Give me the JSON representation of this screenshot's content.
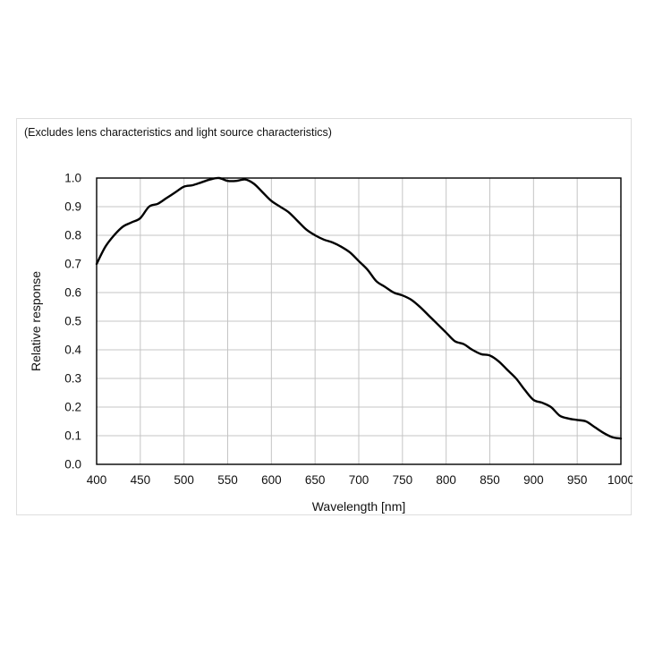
{
  "chart_data": {
    "type": "line",
    "note": "(Excludes lens characteristics and light source characteristics)",
    "xlabel": "Wavelength [nm]",
    "ylabel": "Relative response",
    "xlim": [
      400,
      1000
    ],
    "ylim": [
      0.0,
      1.0
    ],
    "x_ticks": [
      400,
      450,
      500,
      550,
      600,
      650,
      700,
      750,
      800,
      850,
      900,
      950,
      1000
    ],
    "y_ticks": [
      "0.0",
      "0.1",
      "0.2",
      "0.3",
      "0.4",
      "0.5",
      "0.6",
      "0.7",
      "0.8",
      "0.9",
      "1.0"
    ],
    "grid": true,
    "series": [
      {
        "color": "#000000",
        "x": [
          400,
          410,
          420,
          430,
          440,
          450,
          460,
          470,
          480,
          490,
          500,
          510,
          520,
          530,
          540,
          550,
          560,
          570,
          580,
          590,
          600,
          610,
          620,
          630,
          640,
          650,
          660,
          670,
          680,
          690,
          700,
          710,
          720,
          730,
          740,
          750,
          760,
          770,
          780,
          790,
          800,
          810,
          820,
          830,
          840,
          850,
          860,
          870,
          880,
          890,
          900,
          910,
          920,
          930,
          940,
          950,
          960,
          970,
          980,
          990,
          1000
        ],
        "y": [
          0.7,
          0.76,
          0.8,
          0.83,
          0.845,
          0.86,
          0.9,
          0.91,
          0.93,
          0.95,
          0.97,
          0.975,
          0.985,
          0.995,
          1.0,
          0.99,
          0.99,
          0.995,
          0.98,
          0.95,
          0.92,
          0.9,
          0.88,
          0.85,
          0.82,
          0.8,
          0.785,
          0.775,
          0.76,
          0.74,
          0.71,
          0.68,
          0.64,
          0.62,
          0.6,
          0.59,
          0.575,
          0.55,
          0.52,
          0.49,
          0.46,
          0.43,
          0.42,
          0.4,
          0.385,
          0.38,
          0.36,
          0.33,
          0.3,
          0.26,
          0.225,
          0.215,
          0.2,
          0.17,
          0.16,
          0.155,
          0.15,
          0.13,
          0.11,
          0.095,
          0.09
        ]
      }
    ]
  }
}
